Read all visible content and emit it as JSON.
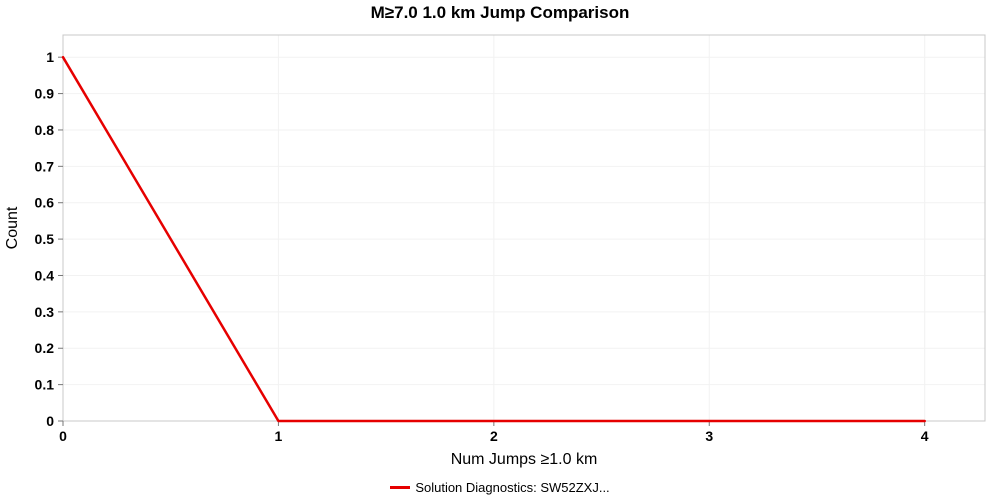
{
  "chart_data": {
    "type": "line",
    "title": "M≥7.0 1.0 km Jump Comparison",
    "xlabel": "Num Jumps ≥1.0 km",
    "ylabel": "Count",
    "xlim": [
      0,
      4.28
    ],
    "ylim": [
      0,
      1.061
    ],
    "x_ticks": [
      0,
      1,
      2,
      3,
      4
    ],
    "y_ticks": [
      0,
      0.1,
      0.2,
      0.3,
      0.4,
      0.5,
      0.6,
      0.7,
      0.8,
      0.9,
      1
    ],
    "grid": true,
    "legend_position": "bottom",
    "styles": {
      "plot_border_color": "#c8c8c8",
      "grid_color": "#f2f2f2",
      "tick_color": "#777777",
      "tick_label_color": "#000000",
      "background": "#ffffff"
    },
    "series": [
      {
        "name": "Solution Diagnostics: SW52ZXJ...",
        "color": "#e60000",
        "x": [
          0,
          1,
          2,
          3,
          4
        ],
        "y": [
          1,
          0,
          0,
          0,
          0
        ]
      }
    ]
  }
}
